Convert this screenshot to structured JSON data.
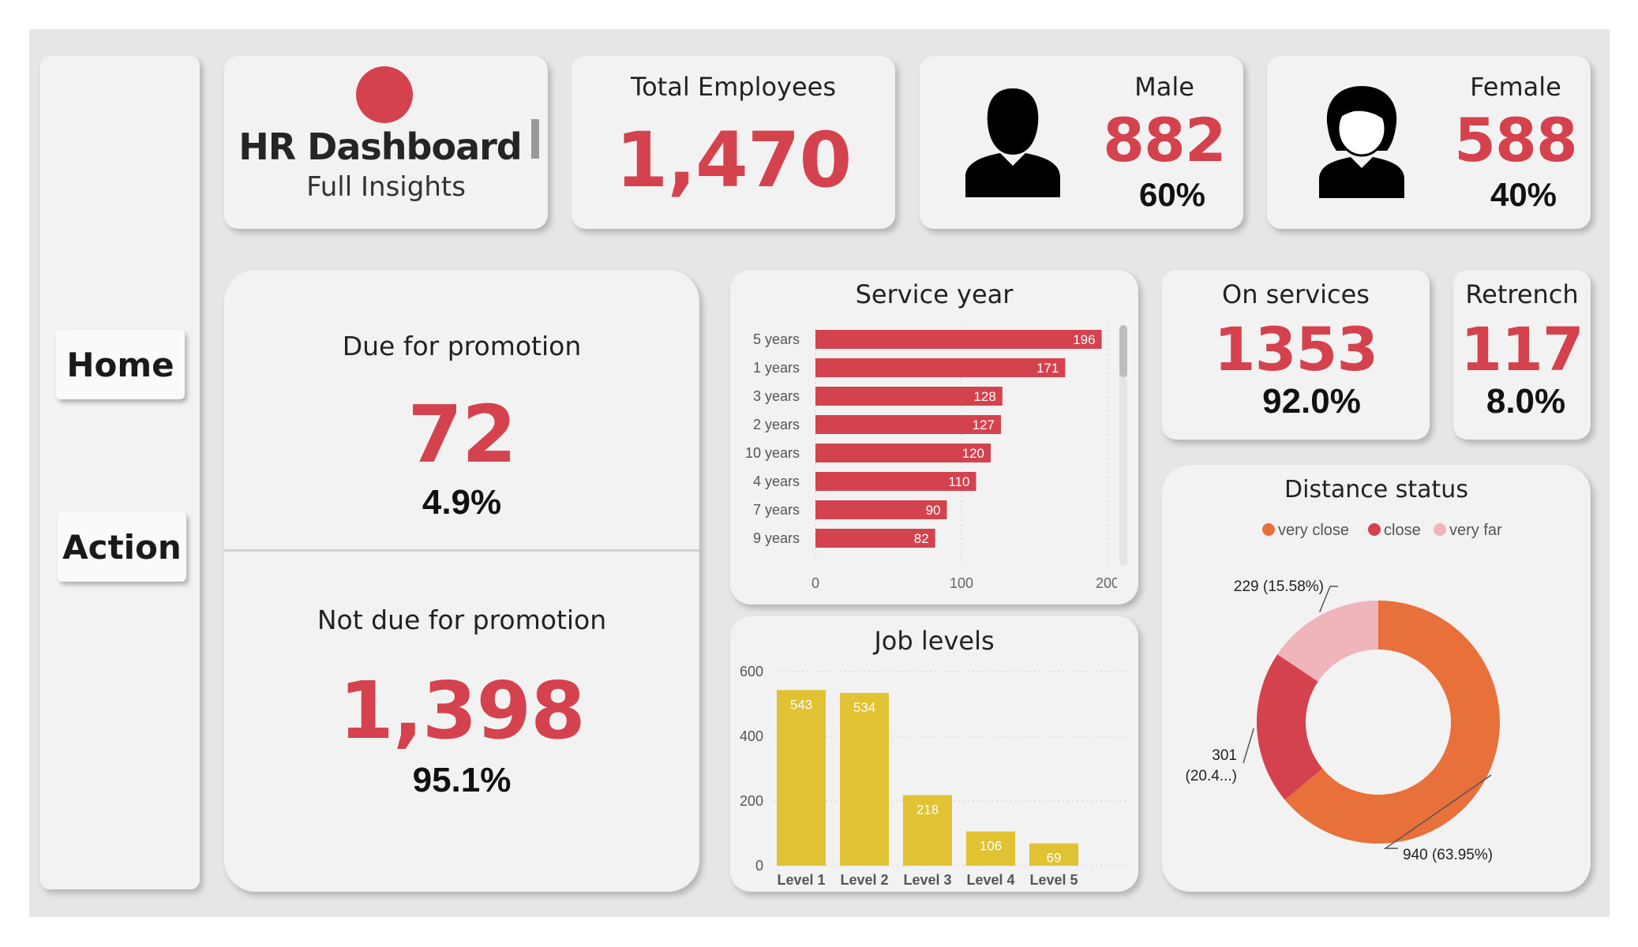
{
  "colors": {
    "accent": "#d4424e",
    "yellow": "#e0c232",
    "orange": "#e8703a",
    "pink": "#f0b4bb",
    "background": "#e6e6e6",
    "card": "#f2f2f2"
  },
  "nav": {
    "home_label": "Home",
    "action_label": "Action"
  },
  "logo": {
    "title": "HR Dashboard",
    "subtitle": "Full Insights"
  },
  "kpi": {
    "total": {
      "label": "Total Employees",
      "value": "1,470"
    },
    "male": {
      "label": "Male",
      "value": "882",
      "pct": "60%",
      "icon": "male-person-icon"
    },
    "female": {
      "label": "Female",
      "value": "588",
      "pct": "40%",
      "icon": "female-person-icon"
    },
    "due": {
      "label": "Due for promotion",
      "value": "72",
      "pct": "4.9%"
    },
    "not_due": {
      "label": "Not due for promotion",
      "value": "1,398",
      "pct": "95.1%"
    },
    "on_services": {
      "label": "On services",
      "value": "1353",
      "pct": "92.0%"
    },
    "retrench": {
      "label": "Retrench",
      "value": "117",
      "pct": "8.0%"
    }
  },
  "charts": {
    "service_year": {
      "title": "Service year"
    },
    "job_levels": {
      "title": "Job levels"
    },
    "distance": {
      "title": "Distance status"
    }
  },
  "chart_data": [
    {
      "type": "bar",
      "orientation": "horizontal",
      "title": "Service year",
      "categories": [
        "5 years",
        "1 years",
        "3 years",
        "2 years",
        "10 years",
        "4 years",
        "7 years",
        "9 years"
      ],
      "values": [
        196,
        171,
        128,
        127,
        120,
        110,
        90,
        82
      ],
      "x_ticks": [
        "0",
        "100",
        "200"
      ],
      "xlim": [
        0,
        200
      ],
      "grid": true,
      "color": "#d4424e"
    },
    {
      "type": "bar",
      "title": "Job levels",
      "categories": [
        "Level 1",
        "Level 2",
        "Level 3",
        "Level 4",
        "Level 5"
      ],
      "values": [
        543,
        534,
        218,
        106,
        69
      ],
      "y_ticks": [
        "0",
        "200",
        "400",
        "600"
      ],
      "ylim": [
        0,
        600
      ],
      "grid": true,
      "color": "#e0c232"
    },
    {
      "type": "pie",
      "donut": true,
      "title": "Distance status",
      "legend_placement": "top",
      "labels": [
        "very close",
        "close",
        "very far"
      ],
      "values": [
        940,
        301,
        229
      ],
      "percent_labels": [
        "940 (63.95%)",
        "301 (20.4...)",
        "229 (15.58%)"
      ],
      "colors": [
        "#e8703a",
        "#d4424e",
        "#f0b4bb"
      ]
    }
  ]
}
